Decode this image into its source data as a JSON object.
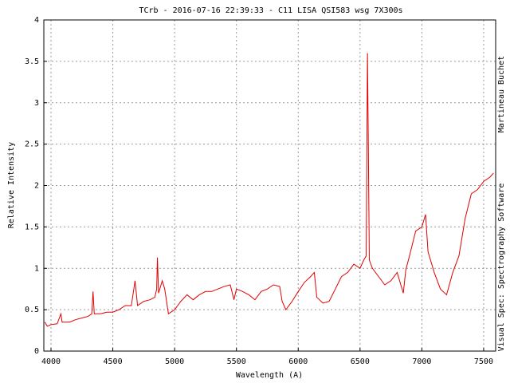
{
  "chart_data": {
    "type": "line",
    "title": "TCrb - 2016-07-16 22:39:33 - C11 LISA  QSI583 wsg  7X300s",
    "x_label": "Wavelength (A)",
    "y_label": "Relative Intensity",
    "right_labels": [
      "Martineau Buchet",
      "Visual Spec: Spectrography Software"
    ],
    "x": [
      3950,
      3970,
      4000,
      4050,
      4080,
      4090,
      4150,
      4200,
      4250,
      4300,
      4330,
      4340,
      4350,
      4400,
      4450,
      4500,
      4550,
      4600,
      4650,
      4680,
      4700,
      4750,
      4800,
      4840,
      4855,
      4861,
      4870,
      4900,
      4920,
      4950,
      5000,
      5050,
      5100,
      5150,
      5200,
      5250,
      5300,
      5350,
      5400,
      5450,
      5480,
      5500,
      5550,
      5600,
      5650,
      5700,
      5750,
      5800,
      5850,
      5870,
      5900,
      5950,
      6000,
      6050,
      6100,
      6130,
      6150,
      6200,
      6250,
      6300,
      6350,
      6400,
      6450,
      6500,
      6530,
      6550,
      6560,
      6567,
      6575,
      6600,
      6650,
      6700,
      6750,
      6800,
      6850,
      6870,
      6900,
      6950,
      7000,
      7030,
      7050,
      7100,
      7150,
      7200,
      7250,
      7300,
      7350,
      7400,
      7450,
      7500,
      7550,
      7580
    ],
    "series": [
      {
        "name": "TCrb",
        "color": "#e00000",
        "values": [
          0.35,
          0.3,
          0.32,
          0.33,
          0.45,
          0.35,
          0.35,
          0.38,
          0.4,
          0.42,
          0.45,
          0.72,
          0.45,
          0.45,
          0.47,
          0.47,
          0.5,
          0.55,
          0.55,
          0.85,
          0.55,
          0.6,
          0.62,
          0.65,
          0.75,
          1.13,
          0.7,
          0.85,
          0.75,
          0.45,
          0.5,
          0.6,
          0.68,
          0.62,
          0.68,
          0.72,
          0.72,
          0.75,
          0.78,
          0.8,
          0.62,
          0.75,
          0.72,
          0.68,
          0.62,
          0.72,
          0.75,
          0.8,
          0.78,
          0.6,
          0.5,
          0.6,
          0.72,
          0.83,
          0.9,
          0.95,
          0.65,
          0.58,
          0.6,
          0.75,
          0.9,
          0.95,
          1.05,
          1.0,
          1.1,
          1.15,
          3.6,
          2.5,
          1.1,
          1.0,
          0.9,
          0.8,
          0.85,
          0.95,
          0.7,
          0.98,
          1.15,
          1.45,
          1.5,
          1.65,
          1.2,
          0.95,
          0.75,
          0.68,
          0.95,
          1.15,
          1.6,
          1.9,
          1.95,
          2.05,
          2.1,
          2.15
        ]
      }
    ],
    "xlim": [
      3942,
      7597
    ],
    "ylim": [
      0,
      4
    ],
    "xticks": [
      4000,
      4500,
      5000,
      5500,
      6000,
      6500,
      7000,
      7500
    ],
    "yticks": [
      0,
      0.5,
      1,
      1.5,
      2,
      2.5,
      3,
      3.5,
      4
    ],
    "grid": true
  }
}
